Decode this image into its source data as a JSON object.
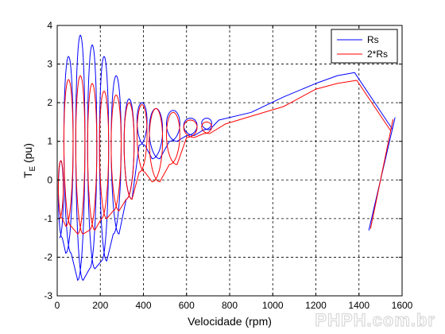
{
  "chart_data": {
    "type": "line",
    "xlabel": "Velocidade (rpm)",
    "ylabel_main": "T",
    "ylabel_sub": "E",
    "ylabel_unit": " (pu)",
    "xlim": [
      0,
      1600
    ],
    "ylim": [
      -3,
      4
    ],
    "xticks": [
      0,
      200,
      400,
      600,
      800,
      1000,
      1200,
      1400,
      1600
    ],
    "yticks": [
      -3,
      -2,
      -1,
      0,
      1,
      2,
      3,
      4
    ],
    "grid": true,
    "legend_position": "top-right",
    "series": [
      {
        "name": "Rs",
        "color": "#0000ff",
        "oscillation_peaks": [
          [
            10,
            -1.5,
            0.5
          ],
          [
            40,
            -1.9,
            3.2
          ],
          [
            95,
            -2.6,
            3.75
          ],
          [
            150,
            -2.3,
            3.5
          ],
          [
            205,
            -2.1,
            3.2
          ],
          [
            260,
            -1.4,
            2.7
          ],
          [
            320,
            -0.5,
            2.1
          ],
          [
            380,
            0.9,
            2.0
          ],
          [
            440,
            0.55,
            1.85
          ],
          [
            520,
            1.0,
            1.8
          ],
          [
            600,
            1.15,
            1.6
          ],
          [
            680,
            1.3,
            1.6
          ]
        ],
        "rise_points": [
          [
            750,
            1.55
          ],
          [
            900,
            1.75
          ],
          [
            1050,
            2.15
          ],
          [
            1200,
            2.5
          ],
          [
            1300,
            2.7
          ],
          [
            1380,
            2.78
          ]
        ],
        "spiral_center": [
          1500,
          0.0
        ],
        "spiral_max": [
          1570,
          1.6
        ]
      },
      {
        "name": "2*Rs",
        "color": "#ff0000",
        "oscillation_peaks": [
          [
            10,
            -1.0,
            0.5
          ],
          [
            40,
            -1.2,
            2.6
          ],
          [
            95,
            -1.4,
            2.7
          ],
          [
            150,
            -1.3,
            2.5
          ],
          [
            205,
            -1.0,
            2.3
          ],
          [
            260,
            -0.8,
            2.2
          ],
          [
            320,
            -0.5,
            2.0
          ],
          [
            380,
            0.2,
            1.95
          ],
          [
            440,
            -0.05,
            1.85
          ],
          [
            520,
            0.4,
            1.75
          ],
          [
            600,
            1.1,
            1.55
          ],
          [
            680,
            1.2,
            1.5
          ]
        ],
        "rise_points": [
          [
            780,
            1.45
          ],
          [
            900,
            1.65
          ],
          [
            1050,
            1.9
          ],
          [
            1200,
            2.35
          ],
          [
            1300,
            2.5
          ],
          [
            1390,
            2.58
          ]
        ],
        "spiral_center": [
          1500,
          0.0
        ],
        "spiral_max": [
          1560,
          1.55
        ]
      }
    ]
  },
  "watermark": "PHPH.com.br"
}
